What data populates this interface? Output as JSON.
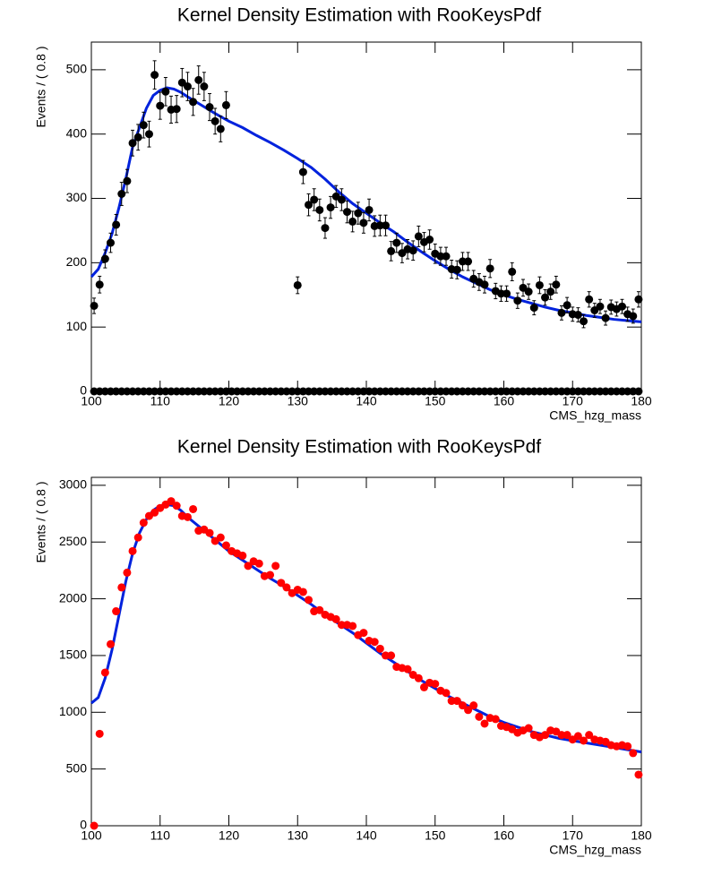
{
  "charts": [
    {
      "chart_data": {
        "type": "scatter",
        "title": "Kernel Density Estimation with RooKeysPdf",
        "xlabel": "CMS_hzg_mass",
        "ylabel": "Events / ( 0.8 )",
        "xlim": [
          100,
          180
        ],
        "ylim": [
          0,
          543
        ],
        "xticks": [
          100,
          110,
          120,
          130,
          140,
          150,
          160,
          170,
          180
        ],
        "yticks": [
          0,
          100,
          200,
          300,
          400,
          500
        ],
        "series": [
          {
            "color": "#000000",
            "x": [
              100.4,
              101.2,
              102,
              102.8,
              103.6,
              104.4,
              105.2,
              106,
              106.8,
              107.6,
              108.4,
              109.2,
              110,
              110.8,
              111.6,
              112.4,
              113.2,
              114,
              114.8,
              115.6,
              116.4,
              117.2,
              118,
              118.8,
              119.6,
              120.4,
              121.2,
              122,
              122.8,
              123.6,
              124.4,
              125.2,
              126,
              126.8,
              127.6,
              128.4,
              129.2,
              130,
              130.8,
              131.6,
              132.4,
              133.2,
              134,
              134.8,
              135.6,
              136.4,
              137.2,
              138,
              138.8,
              139.6,
              140.4,
              141.2,
              142,
              142.8,
              143.6,
              144.4,
              145.2,
              146,
              146.8,
              147.6,
              148.4,
              149.2,
              150,
              150.8,
              151.6,
              152.4,
              153.2,
              154,
              154.8,
              155.6,
              156.4,
              157.2,
              158,
              158.8,
              159.6,
              160.4,
              161.2,
              162,
              162.8,
              163.6,
              164.4,
              165.2,
              166,
              166.8,
              167.6,
              168.4,
              169.2,
              170,
              170.8,
              171.6,
              172.4,
              173.2,
              174,
              174.8,
              175.6,
              176.4,
              177.2,
              178,
              178.8,
              179.6
            ],
            "values": [
              133,
              166,
              206,
              231,
              259,
              307,
              327,
              386,
              395,
              414,
              400,
              492,
              444,
              466,
              438,
              439,
              480,
              474,
              450,
              484,
              474,
              442,
              420,
              408,
              445,
              null,
              null,
              null,
              null,
              null,
              null,
              null,
              null,
              null,
              null,
              null,
              null,
              165,
              341,
              290,
              298,
              282,
              254,
              286,
              303,
              298,
              279,
              264,
              277,
              262,
              282,
              257,
              258,
              258,
              218,
              231,
              215,
              221,
              219,
              241,
              232,
              236,
              214,
              210,
              210,
              190,
              189,
              202,
              202,
              175,
              170,
              166,
              191,
              156,
              152,
              152,
              186,
              141,
              161,
              155,
              130,
              165,
              146,
              155,
              166,
              122,
              134,
              120,
              119,
              109,
              143,
              126,
              132,
              114,
              131,
              128,
              132,
              120,
              117,
              143
            ],
            "errors": [
              12,
              13,
              14,
              15,
              16,
              18,
              18,
              20,
              20,
              20,
              20,
              22,
              21,
              22,
              21,
              21,
              22,
              22,
              21,
              22,
              22,
              21,
              20,
              20,
              21,
              null,
              null,
              null,
              null,
              null,
              null,
              null,
              null,
              null,
              null,
              null,
              null,
              13,
              18,
              17,
              17,
              17,
              16,
              17,
              17,
              17,
              17,
              16,
              17,
              16,
              17,
              16,
              16,
              16,
              15,
              15,
              15,
              15,
              15,
              16,
              15,
              15,
              15,
              14,
              14,
              14,
              14,
              14,
              14,
              13,
              13,
              13,
              14,
              12,
              12,
              12,
              14,
              12,
              13,
              12,
              11,
              13,
              12,
              12,
              13,
              11,
              12,
              11,
              11,
              10,
              12,
              11,
              11,
              11,
              11,
              11,
              11,
              11,
              11,
              12
            ]
          },
          {
            "color": "#000000",
            "x": [
              100.4,
              101.2,
              102,
              102.8,
              103.6,
              104.4,
              105.2,
              106,
              106.8,
              107.6,
              108.4,
              109.2,
              110,
              110.8,
              111.6,
              112.4,
              113.2,
              114,
              114.8,
              115.6,
              116.4,
              117.2,
              118,
              118.8,
              119.6,
              120.4,
              121.2,
              122,
              122.8,
              123.6,
              124.4,
              125.2,
              126,
              126.8,
              127.6,
              128.4,
              129.2,
              130,
              130.8,
              131.6,
              132.4,
              133.2,
              134,
              134.8,
              135.6,
              136.4,
              137.2,
              138,
              138.8,
              139.6,
              140.4,
              141.2,
              142,
              142.8,
              143.6,
              144.4,
              145.2,
              146,
              146.8,
              147.6,
              148.4,
              149.2,
              150,
              150.8,
              151.6,
              152.4,
              153.2,
              154,
              154.8,
              155.6,
              156.4,
              157.2,
              158,
              158.8,
              159.6,
              160.4,
              161.2,
              162,
              162.8,
              163.6,
              164.4,
              165.2,
              166,
              166.8,
              167.6,
              168.4,
              169.2,
              170,
              170.8,
              171.6,
              172.4,
              173.2,
              174,
              174.8,
              175.6,
              176.4,
              177.2,
              178,
              178.8,
              179.6
            ],
            "values": [
              0,
              0,
              0,
              0,
              0,
              0,
              0,
              0,
              0,
              0,
              0,
              0,
              0,
              0,
              0,
              0,
              0,
              0,
              0,
              0,
              0,
              0,
              0,
              0,
              0,
              0,
              0,
              0,
              0,
              0,
              0,
              0,
              0,
              0,
              0,
              0,
              0,
              0,
              0,
              0,
              0,
              0,
              0,
              0,
              0,
              0,
              0,
              0,
              0,
              0,
              0,
              0,
              0,
              0,
              0,
              0,
              0,
              0,
              0,
              0,
              0,
              0,
              0,
              0,
              0,
              0,
              0,
              0,
              0,
              0,
              0,
              0,
              0,
              0,
              0,
              0,
              0,
              0,
              0,
              0,
              0,
              0,
              0,
              0,
              0,
              0,
              0,
              0,
              0,
              0,
              0,
              0,
              0,
              0,
              0,
              0,
              0,
              0,
              0,
              0
            ]
          },
          {
            "type": "line",
            "color": "#0022dd",
            "x": [
              100,
              101,
              102,
              103,
              104,
              105,
              106,
              107,
              108,
              109,
              110,
              111,
              112,
              113,
              114,
              116,
              118,
              120,
              122,
              124,
              126,
              128,
              130,
              132,
              134,
              136,
              138,
              140,
              142,
              144,
              146,
              148,
              150,
              152,
              154,
              156,
              158,
              160,
              162,
              164,
              166,
              168,
              170,
              172,
              174,
              176,
              178,
              180
            ],
            "values": [
              178,
              190,
              215,
              245,
              285,
              330,
              380,
              410,
              440,
              460,
              468,
              472,
              470,
              465,
              458,
              445,
              432,
              420,
              410,
              398,
              387,
              375,
              362,
              348,
              330,
              310,
              292,
              277,
              262,
              248,
              232,
              217,
              203,
              190,
              178,
              168,
              158,
              150,
              143,
              137,
              131,
              126,
              122,
              118,
              115,
              112,
              110,
              108
            ]
          }
        ]
      }
    },
    {
      "chart_data": {
        "type": "scatter",
        "title": "Kernel Density Estimation with RooKeysPdf",
        "xlabel": "CMS_hzg_mass",
        "ylabel": "Events / ( 0.8 )",
        "xlim": [
          100,
          180
        ],
        "ylim": [
          0,
          3070
        ],
        "xticks": [
          100,
          110,
          120,
          130,
          140,
          150,
          160,
          170,
          180
        ],
        "yticks": [
          0,
          500,
          1000,
          1500,
          2000,
          2500,
          3000
        ],
        "series": [
          {
            "color": "#ff0000",
            "x": [
              100.4,
              101.2,
              102,
              102.8,
              103.6,
              104.4,
              105.2,
              106,
              106.8,
              107.6,
              108.4,
              109.2,
              110,
              110.8,
              111.6,
              112.4,
              113.2,
              114,
              114.8,
              115.6,
              116.4,
              117.2,
              118,
              118.8,
              119.6,
              120.4,
              121.2,
              122,
              122.8,
              123.6,
              124.4,
              125.2,
              126,
              126.8,
              127.6,
              128.4,
              129.2,
              130,
              130.8,
              131.6,
              132.4,
              133.2,
              134,
              134.8,
              135.6,
              136.4,
              137.2,
              138,
              138.8,
              139.6,
              140.4,
              141.2,
              142,
              142.8,
              143.6,
              144.4,
              145.2,
              146,
              146.8,
              147.6,
              148.4,
              149.2,
              150,
              150.8,
              151.6,
              152.4,
              153.2,
              154,
              154.8,
              155.6,
              156.4,
              157.2,
              158,
              158.8,
              159.6,
              160.4,
              161.2,
              162,
              162.8,
              163.6,
              164.4,
              165.2,
              166,
              166.8,
              167.6,
              168.4,
              169.2,
              170,
              170.8,
              171.6,
              172.4,
              173.2,
              174,
              174.8,
              175.6,
              176.4,
              177.2,
              178,
              178.8,
              179.6
            ],
            "values": [
              0,
              810,
              1350,
              1600,
              1890,
              2100,
              2230,
              2420,
              2540,
              2670,
              2730,
              2760,
              2800,
              2830,
              2860,
              2820,
              2730,
              2720,
              2790,
              2600,
              2610,
              2580,
              2510,
              2540,
              2470,
              2420,
              2400,
              2380,
              2290,
              2330,
              2310,
              2200,
              2210,
              2290,
              2140,
              2100,
              2050,
              2080,
              2060,
              1990,
              1890,
              1900,
              1860,
              1840,
              1820,
              1770,
              1770,
              1760,
              1680,
              1700,
              1630,
              1620,
              1560,
              1500,
              1500,
              1400,
              1390,
              1380,
              1330,
              1300,
              1220,
              1260,
              1250,
              1190,
              1170,
              1100,
              1100,
              1060,
              1020,
              1060,
              960,
              900,
              950,
              940,
              880,
              870,
              850,
              820,
              840,
              860,
              800,
              780,
              800,
              840,
              830,
              800,
              800,
              760,
              790,
              750,
              800,
              760,
              750,
              740,
              710,
              700,
              710,
              700,
              640,
              450
            ]
          },
          {
            "type": "line",
            "color": "#0022dd",
            "x": [
              100,
              101,
              102,
              103,
              104,
              105,
              106,
              107,
              108,
              109,
              110,
              111,
              112,
              113,
              114,
              116,
              118,
              120,
              122,
              124,
              126,
              128,
              130,
              132,
              134,
              136,
              138,
              140,
              142,
              144,
              146,
              148,
              150,
              152,
              154,
              156,
              158,
              160,
              162,
              164,
              166,
              168,
              170,
              172,
              174,
              176,
              178,
              180
            ],
            "values": [
              1080,
              1130,
              1300,
              1550,
              1850,
              2150,
              2400,
              2580,
              2700,
              2780,
              2820,
              2830,
              2820,
              2780,
              2720,
              2620,
              2520,
              2420,
              2340,
              2260,
              2180,
              2110,
              2030,
              1950,
              1860,
              1780,
              1700,
              1610,
              1520,
              1440,
              1360,
              1280,
              1210,
              1140,
              1080,
              1020,
              960,
              910,
              870,
              830,
              800,
              770,
              750,
              730,
              710,
              690,
              670,
              650
            ]
          }
        ]
      }
    }
  ]
}
